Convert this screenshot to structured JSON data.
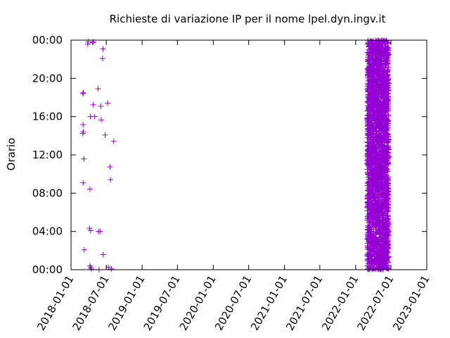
{
  "chart_data": {
    "type": "scatter",
    "title": "Richieste di variazione IP per il nome lpel.dyn.ingv.it",
    "xlabel": "",
    "ylabel": "Orario",
    "x_axis": {
      "kind": "date",
      "range": [
        "2018-01-01",
        "2023-01-01"
      ],
      "ticks": [
        "2018-01-01",
        "2018-07-01",
        "2019-01-01",
        "2019-07-01",
        "2020-01-01",
        "2020-07-01",
        "2021-01-01",
        "2021-07-01",
        "2022-01-01",
        "2022-07-01",
        "2023-01-01"
      ]
    },
    "y_axis": {
      "kind": "time-of-day",
      "range": [
        "00:00",
        "24:00"
      ],
      "ticks": [
        "00:00",
        "04:00",
        "08:00",
        "12:00",
        "16:00",
        "20:00",
        "00:00"
      ]
    },
    "grid": false,
    "legend": "none",
    "marker": "+",
    "series": [
      {
        "color": "#9400d3",
        "points": [
          {
            "x": "2018-03-03",
            "y": "18:25"
          },
          {
            "x": "2018-03-05",
            "y": "18:30"
          },
          {
            "x": "2018-03-04",
            "y": "15:10"
          },
          {
            "x": "2018-03-03",
            "y": "14:15"
          },
          {
            "x": "2018-03-05",
            "y": "14:25"
          },
          {
            "x": "2018-03-08",
            "y": "11:35"
          },
          {
            "x": "2018-03-04",
            "y": "09:05"
          },
          {
            "x": "2018-03-10",
            "y": "02:05"
          },
          {
            "x": "2018-03-28",
            "y": "23:35"
          },
          {
            "x": "2018-03-30",
            "y": "23:50"
          },
          {
            "x": "2018-04-10",
            "y": "16:00"
          },
          {
            "x": "2018-04-08",
            "y": "08:25"
          },
          {
            "x": "2018-04-06",
            "y": "04:20"
          },
          {
            "x": "2018-04-12",
            "y": "04:05"
          },
          {
            "x": "2018-04-08",
            "y": "00:25"
          },
          {
            "x": "2018-04-12",
            "y": "00:15"
          },
          {
            "x": "2018-04-15",
            "y": "00:05"
          },
          {
            "x": "2018-04-22",
            "y": "23:45"
          },
          {
            "x": "2018-04-26",
            "y": "23:50"
          },
          {
            "x": "2018-04-25",
            "y": "17:15"
          },
          {
            "x": "2018-05-03",
            "y": "16:00"
          },
          {
            "x": "2018-05-20",
            "y": "18:55"
          },
          {
            "x": "2018-05-22",
            "y": "04:00"
          },
          {
            "x": "2018-05-30",
            "y": "04:00"
          },
          {
            "x": "2018-05-25",
            "y": "00:00"
          },
          {
            "x": "2018-06-03",
            "y": "17:05"
          },
          {
            "x": "2018-06-05",
            "y": "15:40"
          },
          {
            "x": "2018-06-12",
            "y": "22:05"
          },
          {
            "x": "2018-06-14",
            "y": "23:05"
          },
          {
            "x": "2018-06-15",
            "y": "01:35"
          },
          {
            "x": "2018-06-25",
            "y": "14:05"
          },
          {
            "x": "2018-07-08",
            "y": "17:25"
          },
          {
            "x": "2018-07-12",
            "y": "00:15"
          },
          {
            "x": "2018-07-20",
            "y": "10:45"
          },
          {
            "x": "2018-07-23",
            "y": "09:25"
          },
          {
            "x": "2018-07-28",
            "y": "00:05"
          },
          {
            "x": "2018-08-08",
            "y": "13:25"
          }
        ],
        "dense_cluster": {
          "x_range": [
            "2022-03-01",
            "2022-06-20"
          ],
          "y_range": [
            "00:00",
            "24:00"
          ],
          "note": "very dense band of requests"
        }
      }
    ]
  }
}
